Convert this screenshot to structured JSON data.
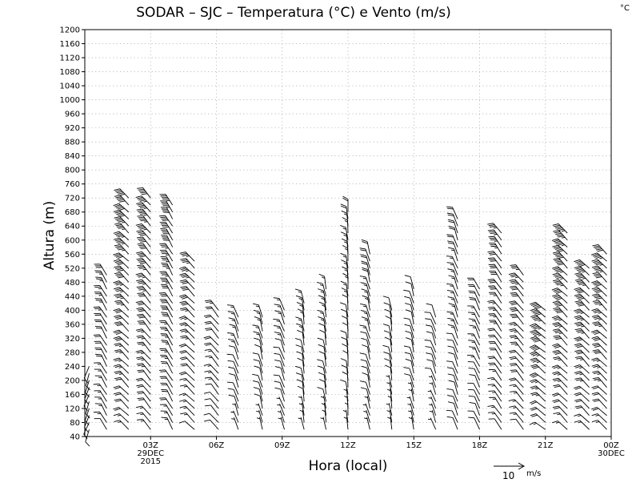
{
  "title": "SODAR – SJC – Temperatura (°C) e Vento (m/s)",
  "unit_corner": "°C",
  "legend": {
    "value": "10",
    "unit": "m/s"
  },
  "chart_data": {
    "type": "wind_barbs",
    "title": "SODAR – SJC – Temperatura (°C) e Vento (m/s)",
    "xlabel": "Hora (local)",
    "ylabel": "Altura (m)",
    "x_unit": "hours since 00Z 29DEC2015",
    "xlim": [
      0,
      24
    ],
    "ylim": [
      40,
      1200
    ],
    "grid": true,
    "y_ticks": [
      40,
      80,
      120,
      160,
      200,
      240,
      280,
      320,
      360,
      400,
      440,
      480,
      520,
      560,
      600,
      640,
      680,
      720,
      760,
      800,
      840,
      880,
      920,
      960,
      1000,
      1040,
      1080,
      1120,
      1160,
      1200
    ],
    "x_ticks": [
      {
        "x": 3,
        "lines": [
          "03Z",
          "29DEC",
          "2015"
        ]
      },
      {
        "x": 6,
        "lines": [
          "06Z"
        ]
      },
      {
        "x": 9,
        "lines": [
          "09Z"
        ]
      },
      {
        "x": 12,
        "lines": [
          "12Z"
        ]
      },
      {
        "x": 15,
        "lines": [
          "15Z"
        ]
      },
      {
        "x": 18,
        "lines": [
          "18Z"
        ]
      },
      {
        "x": 21,
        "lines": [
          "21Z"
        ]
      },
      {
        "x": 24,
        "lines": [
          "00Z",
          "30DEC"
        ]
      }
    ],
    "profiles": [
      {
        "x": 0.2,
        "top": 240,
        "dir": 200,
        "surf": 4,
        "top_speed": 5
      },
      {
        "x": 1.0,
        "top": 500,
        "dir": 330,
        "surf": 6,
        "top_speed": 14
      },
      {
        "x": 2.0,
        "top": 720,
        "dir": 315,
        "surf": 8,
        "top_speed": 26
      },
      {
        "x": 3.0,
        "top": 720,
        "dir": 320,
        "surf": 8,
        "top_speed": 24
      },
      {
        "x": 4.0,
        "top": 700,
        "dir": 330,
        "surf": 8,
        "top_speed": 22
      },
      {
        "x": 5.0,
        "top": 540,
        "dir": 315,
        "surf": 6,
        "top_speed": 18
      },
      {
        "x": 6.1,
        "top": 410,
        "dir": 320,
        "surf": 4,
        "top_speed": 12
      },
      {
        "x": 7.0,
        "top": 380,
        "dir": 340,
        "surf": 3,
        "top_speed": 8
      },
      {
        "x": 8.1,
        "top": 390,
        "dir": 345,
        "surf": 3,
        "top_speed": 8
      },
      {
        "x": 9.1,
        "top": 400,
        "dir": 340,
        "surf": 3,
        "top_speed": 8
      },
      {
        "x": 10.0,
        "top": 420,
        "dir": 350,
        "surf": 3,
        "top_speed": 8
      },
      {
        "x": 11.0,
        "top": 460,
        "dir": 350,
        "surf": 3,
        "top_speed": 8
      },
      {
        "x": 12.0,
        "top": 680,
        "dir": 355,
        "surf": 3,
        "top_speed": 9
      },
      {
        "x": 13.0,
        "top": 560,
        "dir": 345,
        "surf": 3,
        "top_speed": 10
      },
      {
        "x": 14.0,
        "top": 400,
        "dir": 350,
        "surf": 3,
        "top_speed": 5
      },
      {
        "x": 15.0,
        "top": 460,
        "dir": 345,
        "surf": 3,
        "top_speed": 6
      },
      {
        "x": 16.0,
        "top": 380,
        "dir": 340,
        "surf": 3,
        "top_speed": 5
      },
      {
        "x": 17.0,
        "top": 670,
        "dir": 340,
        "surf": 4,
        "top_speed": 10
      },
      {
        "x": 18.0,
        "top": 460,
        "dir": 335,
        "surf": 4,
        "top_speed": 10
      },
      {
        "x": 19.0,
        "top": 620,
        "dir": 325,
        "surf": 6,
        "top_speed": 18
      },
      {
        "x": 20.0,
        "top": 500,
        "dir": 320,
        "surf": 6,
        "top_speed": 18
      },
      {
        "x": 21.0,
        "top": 400,
        "dir": 310,
        "surf": 8,
        "top_speed": 26
      },
      {
        "x": 22.0,
        "top": 620,
        "dir": 315,
        "surf": 8,
        "top_speed": 28
      },
      {
        "x": 23.0,
        "top": 520,
        "dir": 315,
        "surf": 8,
        "top_speed": 24
      },
      {
        "x": 23.8,
        "top": 560,
        "dir": 315,
        "surf": 8,
        "top_speed": 24
      }
    ]
  }
}
